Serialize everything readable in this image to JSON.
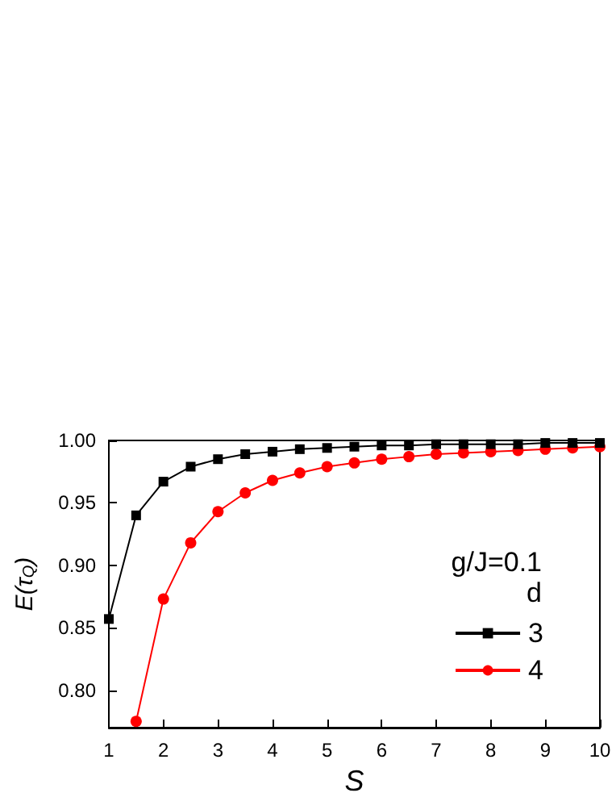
{
  "chart_data": {
    "type": "line",
    "xlabel": "S",
    "ylabel": "E(τ$_{Q}$)",
    "legend_title": "d",
    "annotations": [
      "g/J=0.1"
    ],
    "x": [
      1,
      1.5,
      2,
      2.5,
      3,
      3.5,
      4,
      4.5,
      5,
      5.5,
      6,
      6.5,
      7,
      7.5,
      8,
      8.5,
      9,
      9.5,
      10
    ],
    "series": [
      {
        "name": "3",
        "color": "#000000",
        "marker": "square",
        "values": [
          0.857,
          0.94,
          0.967,
          0.979,
          0.985,
          0.989,
          0.991,
          0.993,
          0.994,
          0.995,
          0.996,
          0.996,
          0.997,
          0.997,
          0.997,
          0.997,
          0.998,
          0.998,
          0.998
        ]
      },
      {
        "name": "4",
        "color": "#ff0000",
        "marker": "circle",
        "values": [
          null,
          0.775,
          0.873,
          0.918,
          0.943,
          0.958,
          0.968,
          0.974,
          0.979,
          0.982,
          0.985,
          0.987,
          0.989,
          0.99,
          0.991,
          0.992,
          0.993,
          0.994,
          0.995
        ]
      }
    ],
    "xlim": [
      1,
      10
    ],
    "xticks": [
      1,
      2,
      3,
      4,
      5,
      6,
      7,
      8,
      9,
      10
    ],
    "ylim": [
      0.77,
      1.0
    ],
    "yticks": [
      {
        "value": 0.8,
        "label": "0.80"
      },
      {
        "value": 0.85,
        "label": "0.85"
      },
      {
        "value": 0.9,
        "label": "0.90"
      },
      {
        "value": 0.95,
        "label": "0.95"
      },
      {
        "value": 1.0,
        "label": "1.00"
      }
    ],
    "grid": false,
    "legend": "right",
    "line_style": "solid"
  }
}
